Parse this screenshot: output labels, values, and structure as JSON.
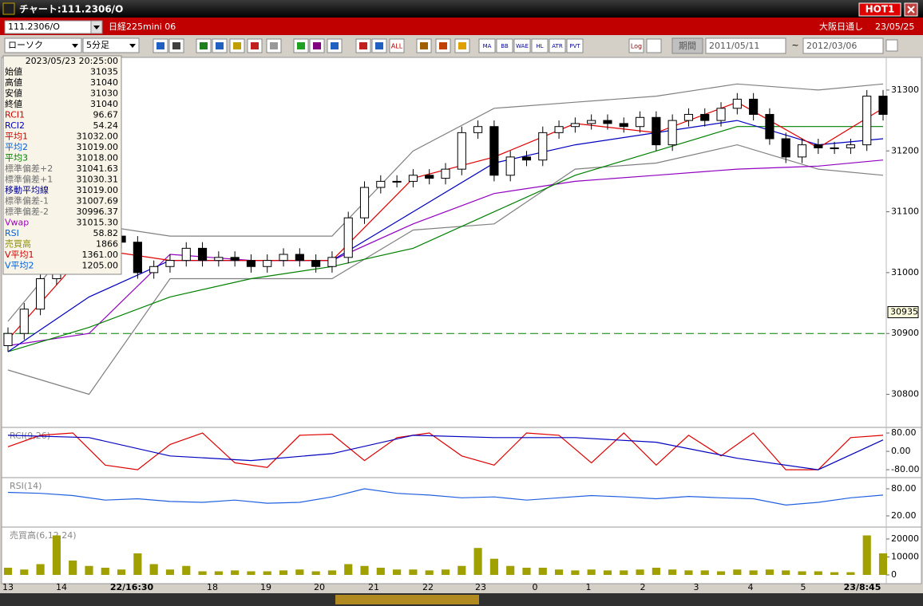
{
  "window": {
    "title": "チャート:111.2306/O",
    "hot": "HOT1"
  },
  "header": {
    "symbol": "111.2306/O",
    "name": "日経225mini 06",
    "session": "大阪日通し",
    "date": "23/05/25"
  },
  "toolbar": {
    "chart_type": "ローソク",
    "interval": "5分足",
    "all": "ALL",
    "icons": [
      "MA",
      "BB",
      "WAE",
      "HL",
      "ATR",
      "PVT"
    ],
    "log": "Log",
    "period": "期間",
    "from": "2011/05/11",
    "tilde": "~",
    "to": "2012/03/06"
  },
  "info": {
    "datetime": "2023/05/23 20:25:00",
    "rows": [
      {
        "label": "始値",
        "value": "31035",
        "color": "#000000"
      },
      {
        "label": "高値",
        "value": "31040",
        "color": "#000000"
      },
      {
        "label": "安値",
        "value": "31030",
        "color": "#000000"
      },
      {
        "label": "終値",
        "value": "31040",
        "color": "#000000"
      },
      {
        "label": "RCI1",
        "value": "96.67",
        "color": "#d00000"
      },
      {
        "label": "RCI2",
        "value": "54.24",
        "color": "#0000c0"
      },
      {
        "label": "平均1",
        "value": "31032.00",
        "color": "#d00000"
      },
      {
        "label": "平均2",
        "value": "31019.00",
        "color": "#0060e0"
      },
      {
        "label": "平均3",
        "value": "31018.00",
        "color": "#008000"
      },
      {
        "label": "標準偏差+2",
        "value": "31041.63",
        "color": "#707070"
      },
      {
        "label": "標準偏差+1",
        "value": "31030.31",
        "color": "#707070"
      },
      {
        "label": "移動平均線",
        "value": "31019.00",
        "color": "#000090"
      },
      {
        "label": "標準偏差-1",
        "value": "31007.69",
        "color": "#707070"
      },
      {
        "label": "標準偏差-2",
        "value": "30996.37",
        "color": "#707070"
      },
      {
        "label": "Vwap",
        "value": "31015.30",
        "color": "#a000c0"
      },
      {
        "label": "RSI",
        "value": "58.82",
        "color": "#0060e0"
      },
      {
        "label": "売買高",
        "value": "1866",
        "color": "#909000"
      },
      {
        "label": "V平均1",
        "value": "1361.00",
        "color": "#d00000"
      },
      {
        "label": "V平均2",
        "value": "1205.00",
        "color": "#0060e0"
      }
    ]
  },
  "x_axis": {
    "labels": [
      "13",
      "14",
      "22/16:30",
      "18",
      "19",
      "20",
      "21",
      "22",
      "23",
      "0",
      "1",
      "2",
      "3",
      "4",
      "5",
      "23/8:45"
    ]
  },
  "chart_data": [
    {
      "type": "candlestick",
      "xlim": [
        0,
        54
      ],
      "ylim": [
        30747,
        31351
      ],
      "yticks": [
        30800,
        30900,
        31000,
        31100,
        31200,
        31300
      ],
      "open": [
        30880,
        30900,
        30940,
        30990,
        31030,
        31040,
        31050,
        31060,
        31050,
        31000,
        31010,
        31020,
        31040,
        31020,
        31025,
        31020,
        31010,
        31020,
        31030,
        31020,
        31010,
        31025,
        31090,
        31140,
        31150,
        31150,
        31160,
        31155,
        31170,
        31230,
        31240,
        31160,
        31190,
        31185,
        31230,
        31240,
        31245,
        31250,
        31245,
        31240,
        31255,
        31210,
        31250,
        31260,
        31250,
        31270,
        31285,
        31260,
        31220,
        31190,
        31210,
        31205,
        31205,
        31210,
        31290
      ],
      "high": [
        30910,
        30950,
        31000,
        31040,
        31050,
        31060,
        31070,
        31070,
        31060,
        31020,
        31030,
        31050,
        31050,
        31035,
        31035,
        31030,
        31030,
        31040,
        31040,
        31030,
        31035,
        31100,
        31150,
        31160,
        31160,
        31170,
        31170,
        31180,
        31240,
        31250,
        31250,
        31200,
        31200,
        31240,
        31250,
        31255,
        31260,
        31260,
        31255,
        31265,
        31265,
        31260,
        31270,
        31270,
        31280,
        31295,
        31295,
        31270,
        31230,
        31220,
        31220,
        31215,
        31220,
        31300,
        31300
      ],
      "low": [
        30870,
        30890,
        30930,
        30980,
        31020,
        31030,
        31040,
        31040,
        30990,
        30990,
        31000,
        31010,
        31010,
        31010,
        31010,
        31000,
        31000,
        31010,
        31010,
        31000,
        31000,
        31015,
        31080,
        31130,
        31140,
        31140,
        31145,
        31145,
        31160,
        31220,
        31150,
        31150,
        31175,
        31175,
        31220,
        31230,
        31235,
        31235,
        31230,
        31230,
        31200,
        31200,
        31240,
        31240,
        31240,
        31260,
        31250,
        31210,
        31180,
        31180,
        31195,
        31195,
        31195,
        31200,
        31250
      ],
      "close": [
        30900,
        30940,
        30990,
        31030,
        31040,
        31050,
        31060,
        31050,
        31000,
        31010,
        31020,
        31040,
        31020,
        31025,
        31020,
        31010,
        31020,
        31030,
        31020,
        31010,
        31025,
        31090,
        31140,
        31150,
        31150,
        31160,
        31155,
        31170,
        31230,
        31240,
        31160,
        31190,
        31185,
        31230,
        31240,
        31245,
        31250,
        31245,
        31240,
        31255,
        31210,
        31250,
        31260,
        31250,
        31270,
        31285,
        31260,
        31220,
        31190,
        31210,
        31205,
        31205,
        31210,
        31290,
        31260
      ],
      "overlays": [
        {
          "name": "標準偏差+2",
          "color": "#808080",
          "x": [
            0,
            5,
            10,
            15,
            20,
            25,
            30,
            35,
            40,
            45,
            50,
            54
          ],
          "values": [
            30920,
            31080,
            31060,
            31060,
            31060,
            31200,
            31270,
            31280,
            31290,
            31310,
            31300,
            31310
          ]
        },
        {
          "name": "標準偏差-2",
          "color": "#808080",
          "x": [
            0,
            5,
            10,
            15,
            20,
            25,
            30,
            35,
            40,
            45,
            50,
            54
          ],
          "values": [
            30840,
            30800,
            30990,
            30990,
            30990,
            31070,
            31080,
            31170,
            31180,
            31210,
            31170,
            31160
          ]
        },
        {
          "name": "Vwap",
          "color": "#9000c0",
          "x": [
            0,
            5,
            10,
            15,
            20,
            25,
            30,
            35,
            40,
            45,
            50,
            54
          ],
          "values": [
            30880,
            30900,
            31030,
            31020,
            31020,
            31080,
            31130,
            31150,
            31160,
            31170,
            31175,
            31185
          ]
        },
        {
          "name": "平均3",
          "color": "#008000",
          "x": [
            0,
            5,
            10,
            15,
            20,
            25,
            30,
            35,
            40,
            45,
            50,
            54
          ],
          "values": [
            30870,
            30910,
            30960,
            30990,
            31010,
            31040,
            31100,
            31160,
            31200,
            31240,
            31240,
            31240
          ]
        },
        {
          "name": "平均2",
          "color": "#0000c0",
          "x": [
            0,
            5,
            10,
            15,
            20,
            25,
            30,
            35,
            40,
            45,
            50,
            54
          ],
          "values": [
            30870,
            30960,
            31020,
            31020,
            31020,
            31100,
            31180,
            31210,
            31230,
            31250,
            31210,
            31220
          ]
        },
        {
          "name": "平均1",
          "color": "#e00000",
          "x": [
            0,
            5,
            10,
            15,
            20,
            25,
            30,
            35,
            40,
            45,
            50,
            54
          ],
          "values": [
            30890,
            31040,
            31020,
            31020,
            31020,
            31155,
            31190,
            31245,
            31230,
            31280,
            31205,
            31270
          ]
        }
      ],
      "hlines": [
        {
          "value": 30900,
          "color": "#008000",
          "dashed": true
        }
      ],
      "last_value": 30935
    },
    {
      "type": "line",
      "title": "RCI(9,26)",
      "xlim": [
        0,
        54
      ],
      "ylim": [
        -111,
        101
      ],
      "yticks": [
        {
          "value": 80,
          "label": "80.00"
        },
        {
          "value": 0,
          "label": "0.00"
        },
        {
          "value": -80,
          "label": "-80.00"
        }
      ],
      "series": [
        {
          "name": "RCI1",
          "color": "#e00000",
          "x": [
            0,
            2,
            4,
            6,
            8,
            10,
            12,
            14,
            16,
            18,
            20,
            22,
            24,
            26,
            28,
            30,
            32,
            34,
            36,
            38,
            40,
            42,
            44,
            46,
            48,
            50,
            52,
            54
          ],
          "values": [
            20,
            70,
            80,
            -60,
            -80,
            30,
            80,
            -50,
            -70,
            70,
            75,
            -40,
            60,
            80,
            -20,
            -60,
            80,
            70,
            -50,
            80,
            -60,
            70,
            -20,
            80,
            -80,
            -80,
            60,
            70
          ]
        },
        {
          "name": "RCI2",
          "color": "#0000c0",
          "x": [
            0,
            5,
            10,
            15,
            20,
            25,
            30,
            35,
            40,
            45,
            50,
            54
          ],
          "values": [
            70,
            60,
            -20,
            -40,
            -10,
            70,
            60,
            60,
            40,
            -30,
            -80,
            50
          ]
        }
      ]
    },
    {
      "type": "line",
      "title": "RSI(14)",
      "xlim": [
        0,
        54
      ],
      "ylim": [
        -3,
        103
      ],
      "yticks": [
        {
          "value": 80,
          "label": "80.00"
        },
        {
          "value": 20,
          "label": "20.00"
        }
      ],
      "series": [
        {
          "name": "RSI",
          "color": "#2060e0",
          "x": [
            0,
            2,
            4,
            6,
            8,
            10,
            12,
            14,
            16,
            18,
            20,
            22,
            24,
            26,
            28,
            30,
            32,
            34,
            36,
            38,
            40,
            42,
            44,
            46,
            48,
            50,
            52,
            54
          ],
          "values": [
            72,
            70,
            65,
            55,
            58,
            52,
            50,
            55,
            48,
            50,
            62,
            80,
            70,
            66,
            60,
            62,
            55,
            60,
            65,
            62,
            58,
            63,
            60,
            58,
            44,
            50,
            60,
            66
          ]
        }
      ]
    },
    {
      "type": "bar",
      "title": "売買高(6,12,24)",
      "xlim": [
        0,
        54
      ],
      "ylim": [
        0,
        26200
      ],
      "yticks": [
        20000,
        10000,
        0
      ],
      "color": "#a0a000",
      "values": [
        4000,
        3000,
        6000,
        22000,
        8000,
        5000,
        4000,
        3000,
        12000,
        6000,
        3000,
        5000,
        2000,
        2000,
        2500,
        2000,
        2000,
        2500,
        3000,
        2000,
        2500,
        6000,
        5000,
        4000,
        3000,
        3000,
        2500,
        3000,
        5000,
        15000,
        9000,
        5000,
        4000,
        4000,
        3000,
        2500,
        3000,
        2500,
        2500,
        3000,
        4000,
        3000,
        2500,
        2500,
        2000,
        3000,
        2500,
        3000,
        2500,
        2000,
        2000,
        1500,
        1500,
        22000,
        12000
      ]
    }
  ]
}
